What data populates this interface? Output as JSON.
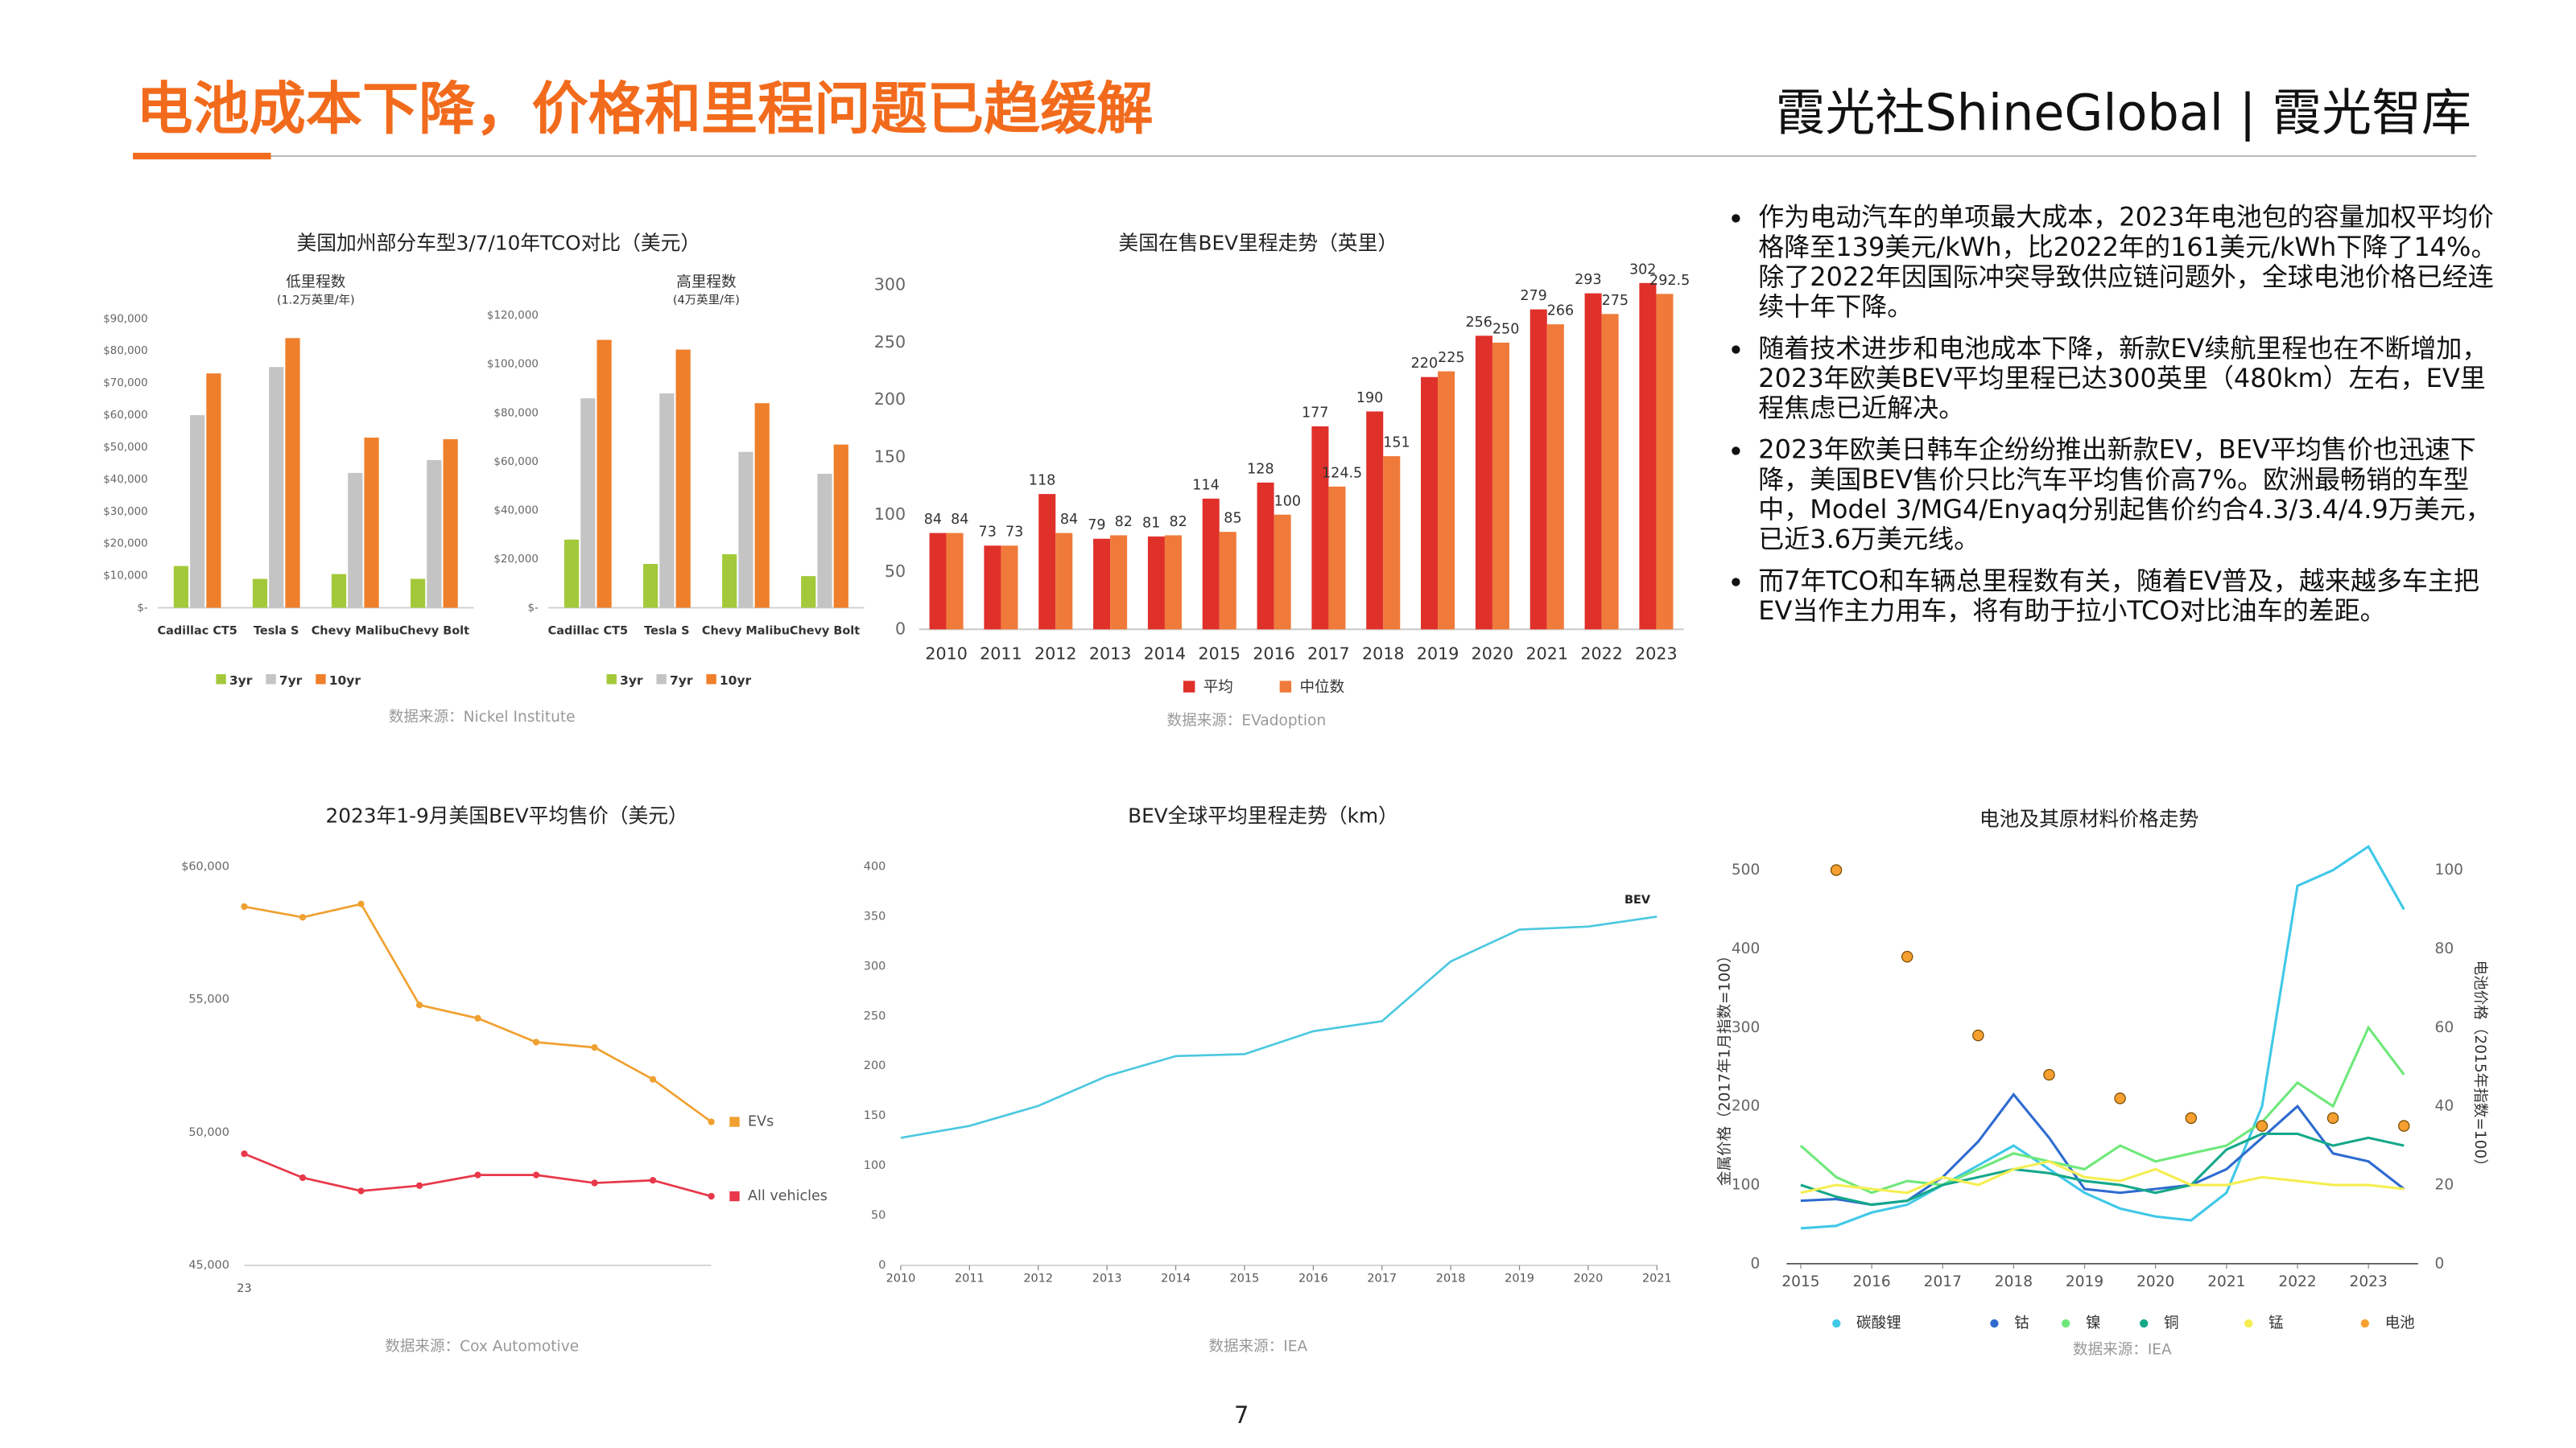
{
  "header": {
    "title": "电池成本下降，价格和里程问题已趋缓解",
    "brand": "霞光社ShineGlobal | 霞光智库"
  },
  "bullets": [
    "作为电动汽车的单项最大成本，2023年电池包的容量加权平均价格降至139美元/kWh，比2022年的161美元/kWh下降了14%。除了2022年因国际冲突导致供应链问题外，全球电池价格已经连续十年下降。",
    "随着技术进步和电池成本下降，新款EV续航里程也在不断增加，2023年欧美BEV平均里程已达300英里（480km）左右，EV里程焦虑已近解决。",
    "2023年欧美日韩车企纷纷推出新款EV，BEV平均售价也迅速下降，美国BEV售价只比汽车平均售价高7%。欧洲最畅销的车型中，Model 3/MG4/Enyaq分别起售价约合4.3/3.4/4.9万美元，已近3.6万美元线。",
    "而7年TCO和车辆总里程数有关，随着EV普及，越来越多车主把EV当作主力用车，将有助于拉小TCO对比油车的差距。"
  ],
  "page_number": "7",
  "chart_data": [
    {
      "type": "bar",
      "title": "美国加州部分车型3/7/10年TCO对比（美元）",
      "source": "数据来源：Nickel Institute",
      "panels": [
        {
          "subtitle": "低里程数",
          "note": "(1.2万英里/年)",
          "categories": [
            "Cadillac CT5",
            "Tesla S",
            "Chevy Malibu",
            "Chevy Bolt"
          ],
          "series": [
            {
              "name": "3yr",
              "color": "#a3c93a",
              "values": [
                13000,
                9000,
                10500,
                9000
              ]
            },
            {
              "name": "7yr",
              "color": "#c4c4c4",
              "values": [
                60000,
                75000,
                42000,
                46000
              ]
            },
            {
              "name": "10yr",
              "color": "#ef7f2a",
              "values": [
                73000,
                84000,
                53000,
                52500
              ]
            }
          ],
          "ylim": [
            0,
            90000
          ],
          "yticks": [
            {
              "value": 0,
              "label": "$-"
            },
            {
              "value": 10000,
              "label": "$10,000"
            },
            {
              "value": 20000,
              "label": "$20,000"
            },
            {
              "value": 30000,
              "label": "$30,000"
            },
            {
              "value": 40000,
              "label": "$40,000"
            },
            {
              "value": 50000,
              "label": "$50,000"
            },
            {
              "value": 60000,
              "label": "$60,000"
            },
            {
              "value": 70000,
              "label": "$70,000"
            },
            {
              "value": 80000,
              "label": "$80,000"
            },
            {
              "value": 90000,
              "label": "$90,000"
            }
          ]
        },
        {
          "subtitle": "高里程数",
          "note": "(4万英里/年)",
          "categories": [
            "Cadillac CT5",
            "Tesla S",
            "Chevy Malibu",
            "Chevy Bolt"
          ],
          "series": [
            {
              "name": "3yr",
              "color": "#a3c93a",
              "values": [
                28000,
                18000,
                22000,
                13000
              ]
            },
            {
              "name": "7yr",
              "color": "#c4c4c4",
              "values": [
                86000,
                88000,
                64000,
                55000
              ]
            },
            {
              "name": "10yr",
              "color": "#ef7f2a",
              "values": [
                110000,
                106000,
                84000,
                67000
              ]
            }
          ],
          "ylim": [
            0,
            120000
          ],
          "yticks": [
            {
              "value": 0,
              "label": "$-"
            },
            {
              "value": 20000,
              "label": "$20,000"
            },
            {
              "value": 40000,
              "label": "$40,000"
            },
            {
              "value": 60000,
              "label": "$60,000"
            },
            {
              "value": 80000,
              "label": "$80,000"
            },
            {
              "value": 100000,
              "label": "$100,000"
            },
            {
              "value": 120000,
              "label": "$120,000"
            }
          ]
        }
      ]
    },
    {
      "type": "bar",
      "title": "美国在售BEV里程走势（英里）",
      "source": "数据来源：EVadoption",
      "data_labels": true,
      "categories": [
        "2010",
        "2011",
        "2012",
        "2013",
        "2014",
        "2015",
        "2016",
        "2017",
        "2018",
        "2019",
        "2020",
        "2021",
        "2022",
        "2023"
      ],
      "series": [
        {
          "name": "平均",
          "color": "#e0302a",
          "values": [
            84,
            73,
            118,
            79,
            81,
            114,
            128,
            177,
            190,
            220,
            256,
            279,
            293,
            302
          ]
        },
        {
          "name": "中位数",
          "color": "#f07a3a",
          "values": [
            84,
            73,
            84,
            82,
            82,
            85,
            100,
            124.5,
            151,
            225,
            250,
            266,
            275,
            292.5
          ]
        }
      ],
      "ylim": [
        0,
        320
      ],
      "yticks": [
        0,
        50,
        100,
        150,
        200,
        250,
        300
      ]
    },
    {
      "type": "line",
      "title": "2023年1-9月美国BEV平均售价（美元）",
      "source": "数据来源：Cox Automotive",
      "categories": [
        "23",
        null,
        null,
        null,
        null,
        null,
        null,
        null,
        null
      ],
      "series": [
        {
          "name": "EVs",
          "color": "#f0a030",
          "values": [
            58500,
            58100,
            58600,
            54800,
            54300,
            53400,
            53200,
            52000,
            50400
          ]
        },
        {
          "name": "All vehicles",
          "color": "#e8384a",
          "values": [
            49200,
            48300,
            47800,
            48000,
            48400,
            48400,
            48100,
            48200,
            47600
          ]
        }
      ],
      "ylim": [
        45000,
        60000
      ],
      "yticks": [
        {
          "value": 45000,
          "label": "45,000"
        },
        {
          "value": 50000,
          "label": "50,000"
        },
        {
          "value": 55000,
          "label": "55,000"
        },
        {
          "value": 60000,
          "label": "$60,000"
        }
      ]
    },
    {
      "type": "line",
      "title": "BEV全球平均里程走势（km）",
      "source": "数据来源：IEA",
      "x": [
        2010,
        2011,
        2012,
        2013,
        2014,
        2015,
        2016,
        2017,
        2018,
        2019,
        2020,
        2021
      ],
      "series": [
        {
          "name": "BEV",
          "color": "#4dc8e0",
          "values": [
            128,
            140,
            160,
            190,
            210,
            212,
            235,
            245,
            305,
            337,
            340,
            350
          ]
        }
      ],
      "xlim": [
        2010,
        2021
      ],
      "xticks": [
        2010,
        2011,
        2012,
        2013,
        2014,
        2015,
        2016,
        2017,
        2018,
        2019,
        2020,
        2021
      ],
      "ylim": [
        0,
        400
      ],
      "yticks": [
        0,
        50,
        100,
        150,
        200,
        250,
        300,
        350,
        400
      ]
    },
    {
      "type": "line",
      "title": "电池及其原材料价格走势",
      "source": "数据来源：IEA",
      "ylabel": "金属价格（2017年1月指数=100）",
      "y2label": "电池价格（2015年指数=100）",
      "x": [
        2015,
        2015.5,
        2016,
        2016.5,
        2017,
        2017.5,
        2018,
        2018.5,
        2019,
        2019.5,
        2020,
        2020.5,
        2021,
        2021.5,
        2022,
        2022.5,
        2023,
        2023.5
      ],
      "series": [
        {
          "name": "碳酸锂",
          "color": "#40c8e8",
          "values": [
            45,
            48,
            65,
            75,
            100,
            125,
            150,
            120,
            90,
            70,
            60,
            55,
            90,
            200,
            480,
            500,
            530,
            450
          ]
        },
        {
          "name": "钴",
          "color": "#2e6bd0",
          "values": [
            80,
            82,
            75,
            80,
            110,
            155,
            215,
            160,
            95,
            90,
            95,
            100,
            120,
            160,
            200,
            140,
            130,
            95
          ]
        },
        {
          "name": "镍",
          "color": "#6ee87a",
          "values": [
            150,
            110,
            90,
            105,
            100,
            120,
            140,
            130,
            120,
            150,
            130,
            140,
            150,
            180,
            230,
            200,
            300,
            240
          ]
        },
        {
          "name": "铜",
          "color": "#15a88a",
          "values": [
            100,
            85,
            75,
            80,
            100,
            110,
            120,
            115,
            105,
            100,
            90,
            100,
            145,
            165,
            165,
            150,
            160,
            150
          ]
        },
        {
          "name": "锰",
          "color": "#f5ee50",
          "values": [
            90,
            100,
            95,
            90,
            110,
            100,
            120,
            130,
            110,
            105,
            120,
            100,
            100,
            110,
            105,
            100,
            100,
            95
          ]
        },
        {
          "name": "电池",
          "color": "#f5a030",
          "type": "scatter",
          "axis": "y2",
          "x": [
            2015.5,
            2016.5,
            2017.5,
            2018.5,
            2019.5,
            2020.5,
            2021.5,
            2022.5,
            2023.5
          ],
          "values": [
            100,
            78,
            58,
            48,
            42,
            37,
            35,
            37,
            35
          ]
        }
      ],
      "xlim": [
        2014.8,
        2023.7
      ],
      "xticks": [
        2015,
        2016,
        2017,
        2018,
        2019,
        2020,
        2021,
        2022,
        2023
      ],
      "ylim": [
        0,
        500
      ],
      "yticks": [
        0,
        100,
        200,
        300,
        400,
        500
      ],
      "y2lim": [
        0,
        100
      ],
      "y2ticks": [
        0,
        20,
        40,
        60,
        80,
        100
      ]
    }
  ]
}
